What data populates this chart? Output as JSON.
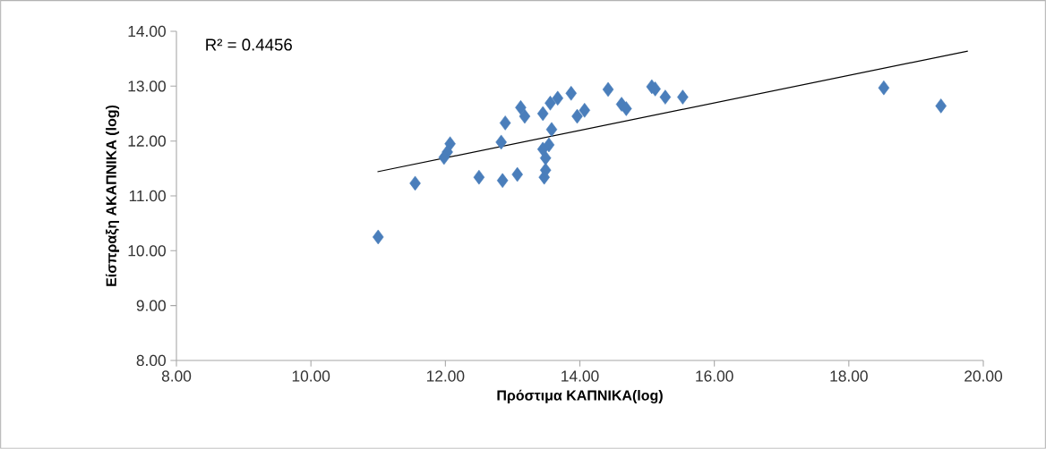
{
  "chart_data": {
    "type": "scatter",
    "xlabel": "Πρόστιμα ΚΑΠΝΙΚΑ(log)",
    "ylabel": "Είσπραξη ΑΚΑΠΝΙΚΑ (log)",
    "xlim": [
      8,
      20
    ],
    "ylim": [
      8,
      14
    ],
    "xticks": [
      {
        "value": 8,
        "label": "8.00"
      },
      {
        "value": 10,
        "label": "10.00"
      },
      {
        "value": 12,
        "label": "12.00"
      },
      {
        "value": 14,
        "label": "14.00"
      },
      {
        "value": 16,
        "label": "16.00"
      },
      {
        "value": 18,
        "label": "18.00"
      },
      {
        "value": 20,
        "label": "20.00"
      }
    ],
    "yticks": [
      {
        "value": 8,
        "label": "8.00"
      },
      {
        "value": 9,
        "label": "9.00"
      },
      {
        "value": 10,
        "label": "10.00"
      },
      {
        "value": 11,
        "label": "11.00"
      },
      {
        "value": 12,
        "label": "12.00"
      },
      {
        "value": 13,
        "label": "13.00"
      },
      {
        "value": 14,
        "label": "14.00"
      }
    ],
    "annotations": [
      "R² = 0.4456"
    ],
    "series": [
      {
        "marker": "diamond",
        "color": "#4a7ebb",
        "x": [
          11.0,
          11.55,
          12.07,
          12.03,
          11.98,
          12.5,
          12.85,
          13.07,
          13.47,
          12.83,
          12.89,
          13.12,
          13.18,
          13.45,
          13.56,
          13.67,
          13.87,
          14.07,
          13.96,
          13.58,
          13.54,
          13.45,
          13.49,
          13.49,
          14.42,
          14.62,
          14.69,
          15.07,
          15.12,
          15.27,
          15.53,
          18.52,
          19.37
        ],
        "values": [
          10.25,
          11.23,
          11.95,
          11.8,
          11.7,
          11.34,
          11.28,
          11.39,
          11.34,
          11.98,
          12.33,
          12.61,
          12.45,
          12.5,
          12.69,
          12.78,
          12.87,
          12.56,
          12.45,
          12.21,
          11.93,
          11.85,
          11.69,
          11.47,
          12.94,
          12.67,
          12.59,
          12.99,
          12.95,
          12.8,
          12.8,
          12.97,
          12.64
        ]
      },
      {
        "type": "line",
        "color": "#000000",
        "x": [
          10.99,
          19.77
        ],
        "values": [
          11.44,
          13.64
        ]
      }
    ]
  }
}
